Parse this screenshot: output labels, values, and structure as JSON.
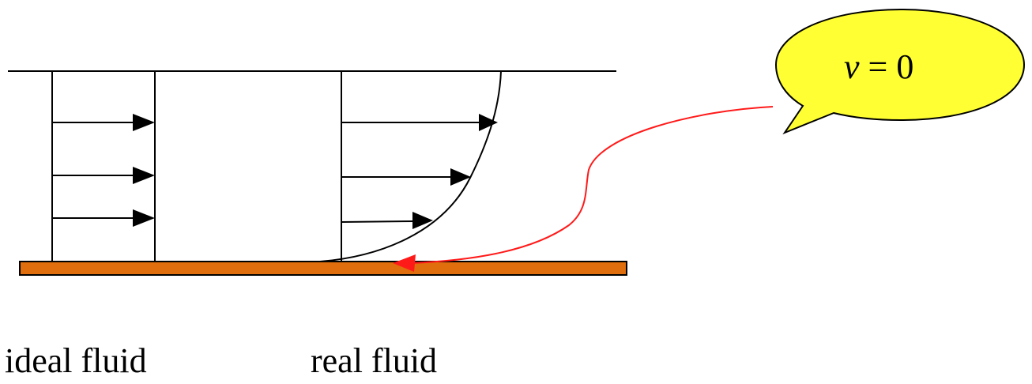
{
  "labels": {
    "ideal": "ideal fluid",
    "real": "real fluid"
  },
  "callout": {
    "variable": "v",
    "operator": "=",
    "value": "0"
  },
  "colors": {
    "wall": "#e06e0c",
    "callout_fill": "#ffff33",
    "pointer": "#ff1a1a",
    "line": "#000000"
  }
}
